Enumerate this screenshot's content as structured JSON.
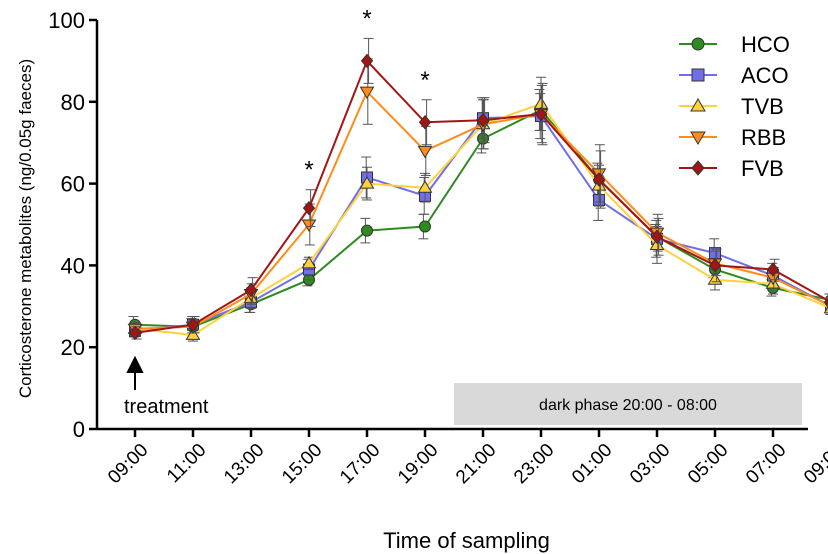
{
  "chart_data": {
    "type": "line",
    "xlabel": "Time of sampling",
    "ylabel": "Corticosterone metabolites (ng/0.05g faeces)",
    "categories": [
      "09:00",
      "11:00",
      "13:00",
      "15:00",
      "17:00",
      "19:00",
      "21:00",
      "23:00",
      "01:00",
      "03:00",
      "05:00",
      "07:00",
      "09:00"
    ],
    "ylim": [
      0,
      100
    ],
    "yticks": [
      "0",
      "20",
      "40",
      "60",
      "80",
      "100"
    ],
    "grid": false,
    "legend_position": "top-right",
    "series": [
      {
        "name": "HCO",
        "color": "#2e8b1f",
        "marker": "circle",
        "values": [
          25.5,
          25,
          30.5,
          36.5,
          48.5,
          49.5,
          71,
          78,
          61,
          47,
          39,
          34.5,
          31.5
        ],
        "errors": [
          2,
          2,
          2,
          1.5,
          3,
          3,
          3.5,
          5,
          4,
          3,
          2,
          2,
          1.5
        ]
      },
      {
        "name": "ACO",
        "color": "#6f6fea",
        "marker": "square",
        "values": [
          24,
          25.5,
          31,
          39,
          61.5,
          57,
          76,
          76.5,
          56,
          46.5,
          43,
          37.5,
          30
        ],
        "errors": [
          1.5,
          2,
          2.5,
          2.5,
          5,
          4.5,
          5,
          5.5,
          5,
          4.5,
          3.5,
          3,
          2
        ]
      },
      {
        "name": "TVB",
        "color": "#ffd23d",
        "marker": "triangle-up",
        "values": [
          24.5,
          23,
          32,
          40.5,
          60,
          59,
          74.5,
          79.5,
          59.5,
          45,
          36.5,
          35.5,
          29.5
        ],
        "errors": [
          1.5,
          1.5,
          2.5,
          1.5,
          4,
          3.5,
          6,
          6.5,
          5,
          4.5,
          2.5,
          2.5,
          1.5
        ]
      },
      {
        "name": "RBB",
        "color": "#ff8c1a",
        "marker": "triangle-down",
        "values": [
          24.5,
          25,
          33,
          50,
          82.5,
          68,
          74.5,
          77,
          62.5,
          48,
          40.5,
          37,
          30
        ],
        "errors": [
          1.5,
          1.5,
          2.5,
          5,
          8,
          6,
          6,
          7,
          7,
          4.5,
          3,
          2.5,
          2
        ]
      },
      {
        "name": "FVB",
        "color": "#a51414",
        "marker": "diamond",
        "values": [
          23.5,
          25.5,
          34,
          54,
          90,
          75,
          75.5,
          77,
          61,
          47,
          40,
          39,
          31
        ],
        "errors": [
          1.5,
          2,
          3,
          4.5,
          5.5,
          5.5,
          5.5,
          7.5,
          7,
          4.5,
          4,
          2.5,
          2
        ]
      }
    ],
    "annotations": {
      "treatment": "treatment",
      "dark_phase": "dark phase 20:00 - 08:00",
      "significance_mark": "*",
      "significance_at": [
        "15:00",
        "17:00",
        "19:00"
      ]
    }
  }
}
